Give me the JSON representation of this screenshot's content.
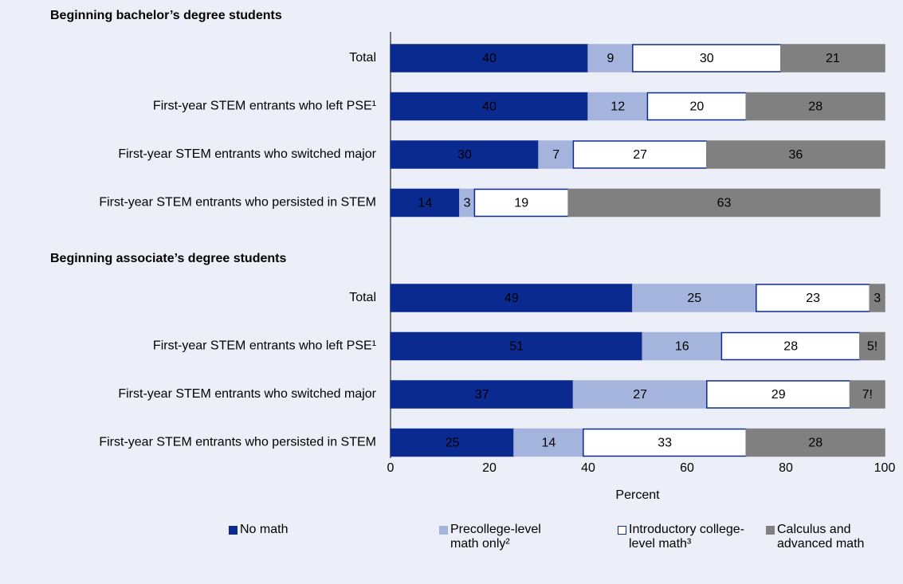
{
  "chart_data": {
    "type": "bar",
    "orientation": "horizontal",
    "stacked": true,
    "series": [
      {
        "name": "No math",
        "color": "#0b2a8f",
        "border": "#0b2a8f",
        "text_color": "#ffffff"
      },
      {
        "name": "Precollege-level math only²",
        "color": "#a5b4dd",
        "border": "#a5b4dd",
        "text_color": "#000000"
      },
      {
        "name": "Introductory college-level math³",
        "color": "#ffffff",
        "border": "#0b2a8f",
        "text_color": "#000000"
      },
      {
        "name": "Calculus and advanced math",
        "color": "#808080",
        "border": "#808080",
        "text_color": "#ffffff"
      }
    ],
    "groups": [
      {
        "title": "Beginning bachelor’s degree students",
        "categories": [
          "Total",
          "First-year STEM entrants who left PSE¹",
          "First-year STEM entrants who switched major",
          "First-year STEM entrants who persisted in STEM"
        ],
        "values": [
          [
            40,
            9,
            30,
            21
          ],
          [
            40,
            12,
            20,
            28
          ],
          [
            30,
            7,
            27,
            36
          ],
          [
            14,
            3,
            19,
            63
          ]
        ]
      },
      {
        "title": "Beginning associate’s degree students",
        "categories": [
          "Total",
          "First-year STEM entrants who left PSE¹",
          "First-year STEM entrants who switched major",
          "First-year STEM entrants who persisted in STEM"
        ],
        "values": [
          [
            49,
            25,
            23,
            3
          ],
          [
            51,
            16,
            28,
            5
          ],
          [
            37,
            27,
            29,
            7
          ],
          [
            25,
            14,
            33,
            28
          ]
        ],
        "value_labels": [
          [
            null,
            null,
            null,
            null
          ],
          [
            null,
            null,
            null,
            "5!"
          ],
          [
            null,
            null,
            null,
            "7!"
          ],
          [
            null,
            null,
            null,
            null
          ]
        ]
      }
    ],
    "xlim": [
      0,
      100
    ],
    "xticks": [
      0,
      20,
      40,
      60,
      80,
      100
    ],
    "xlabel": "Percent"
  }
}
